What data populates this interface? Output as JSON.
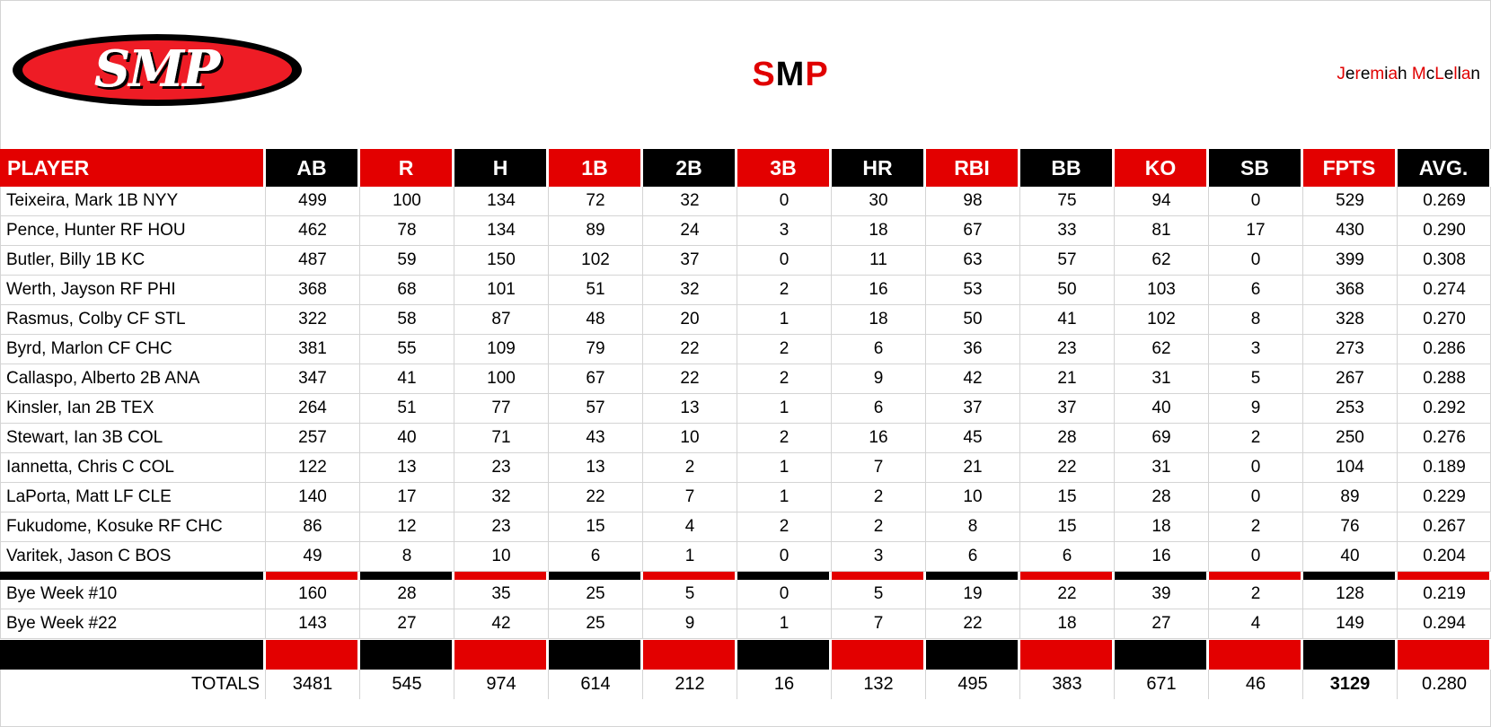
{
  "logo": {
    "text": "SMP",
    "colors": {
      "outer": "#000000",
      "inner": "#ee1c25",
      "letters": "#ffffff"
    }
  },
  "title": {
    "segments": [
      {
        "t": "S",
        "c": "red"
      },
      {
        "t": "M",
        "c": "blk"
      },
      {
        "t": "P",
        "c": "red"
      }
    ]
  },
  "author": {
    "segments": [
      {
        "t": "J",
        "c": "red"
      },
      {
        "t": "e",
        "c": "blk"
      },
      {
        "t": "r",
        "c": "red"
      },
      {
        "t": "e",
        "c": "blk"
      },
      {
        "t": "m",
        "c": "red"
      },
      {
        "t": "i",
        "c": "blk"
      },
      {
        "t": "a",
        "c": "red"
      },
      {
        "t": "h ",
        "c": "blk"
      },
      {
        "t": "M",
        "c": "red"
      },
      {
        "t": "c",
        "c": "blk"
      },
      {
        "t": "L",
        "c": "red"
      },
      {
        "t": "e",
        "c": "blk"
      },
      {
        "t": "l",
        "c": "red"
      },
      {
        "t": "l",
        "c": "blk"
      },
      {
        "t": "a",
        "c": "red"
      },
      {
        "t": "n",
        "c": "blk"
      }
    ]
  },
  "colors": {
    "red": "#e30000",
    "black": "#000000",
    "grid": "#d4d4d4"
  },
  "columns": [
    "PLAYER",
    "AB",
    "R",
    "H",
    "1B",
    "2B",
    "3B",
    "HR",
    "RBI",
    "BB",
    "KO",
    "SB",
    "FPTS",
    "AVG."
  ],
  "players": [
    {
      "name": "Teixeira, Mark 1B NYY",
      "stats": [
        "499",
        "100",
        "134",
        "72",
        "32",
        "0",
        "30",
        "98",
        "75",
        "94",
        "0",
        "529",
        "0.269"
      ]
    },
    {
      "name": "Pence, Hunter RF HOU",
      "stats": [
        "462",
        "78",
        "134",
        "89",
        "24",
        "3",
        "18",
        "67",
        "33",
        "81",
        "17",
        "430",
        "0.290"
      ]
    },
    {
      "name": "Butler, Billy 1B KC",
      "stats": [
        "487",
        "59",
        "150",
        "102",
        "37",
        "0",
        "11",
        "63",
        "57",
        "62",
        "0",
        "399",
        "0.308"
      ]
    },
    {
      "name": "Werth, Jayson RF PHI",
      "stats": [
        "368",
        "68",
        "101",
        "51",
        "32",
        "2",
        "16",
        "53",
        "50",
        "103",
        "6",
        "368",
        "0.274"
      ]
    },
    {
      "name": "Rasmus, Colby CF STL",
      "stats": [
        "322",
        "58",
        "87",
        "48",
        "20",
        "1",
        "18",
        "50",
        "41",
        "102",
        "8",
        "328",
        "0.270"
      ]
    },
    {
      "name": "Byrd, Marlon CF CHC",
      "stats": [
        "381",
        "55",
        "109",
        "79",
        "22",
        "2",
        "6",
        "36",
        "23",
        "62",
        "3",
        "273",
        "0.286"
      ]
    },
    {
      "name": "Callaspo, Alberto 2B ANA",
      "stats": [
        "347",
        "41",
        "100",
        "67",
        "22",
        "2",
        "9",
        "42",
        "21",
        "31",
        "5",
        "267",
        "0.288"
      ]
    },
    {
      "name": "Kinsler, Ian 2B TEX",
      "stats": [
        "264",
        "51",
        "77",
        "57",
        "13",
        "1",
        "6",
        "37",
        "37",
        "40",
        "9",
        "253",
        "0.292"
      ]
    },
    {
      "name": "Stewart, Ian 3B COL",
      "stats": [
        "257",
        "40",
        "71",
        "43",
        "10",
        "2",
        "16",
        "45",
        "28",
        "69",
        "2",
        "250",
        "0.276"
      ]
    },
    {
      "name": "Iannetta, Chris C COL",
      "stats": [
        "122",
        "13",
        "23",
        "13",
        "2",
        "1",
        "7",
        "21",
        "22",
        "31",
        "0",
        "104",
        "0.189"
      ]
    },
    {
      "name": "LaPorta, Matt LF CLE",
      "stats": [
        "140",
        "17",
        "32",
        "22",
        "7",
        "1",
        "2",
        "10",
        "15",
        "28",
        "0",
        "89",
        "0.229"
      ]
    },
    {
      "name": "Fukudome, Kosuke RF CHC",
      "stats": [
        "86",
        "12",
        "23",
        "15",
        "4",
        "2",
        "2",
        "8",
        "15",
        "18",
        "2",
        "76",
        "0.267"
      ]
    },
    {
      "name": "Varitek, Jason C BOS",
      "stats": [
        "49",
        "8",
        "10",
        "6",
        "1",
        "0",
        "3",
        "6",
        "6",
        "16",
        "0",
        "40",
        "0.204"
      ]
    }
  ],
  "bye_weeks": [
    {
      "name": "Bye Week #10",
      "stats": [
        "160",
        "28",
        "35",
        "25",
        "5",
        "0",
        "5",
        "19",
        "22",
        "39",
        "2",
        "128",
        "0.219"
      ]
    },
    {
      "name": "Bye Week #22",
      "stats": [
        "143",
        "27",
        "42",
        "25",
        "9",
        "1",
        "7",
        "22",
        "18",
        "27",
        "4",
        "149",
        "0.294"
      ]
    }
  ],
  "totals": {
    "label": "TOTALS",
    "stats": [
      "3481",
      "545",
      "974",
      "614",
      "212",
      "16",
      "132",
      "495",
      "383",
      "671",
      "46",
      "3129",
      "0.280"
    ],
    "bold_column": "FPTS"
  }
}
